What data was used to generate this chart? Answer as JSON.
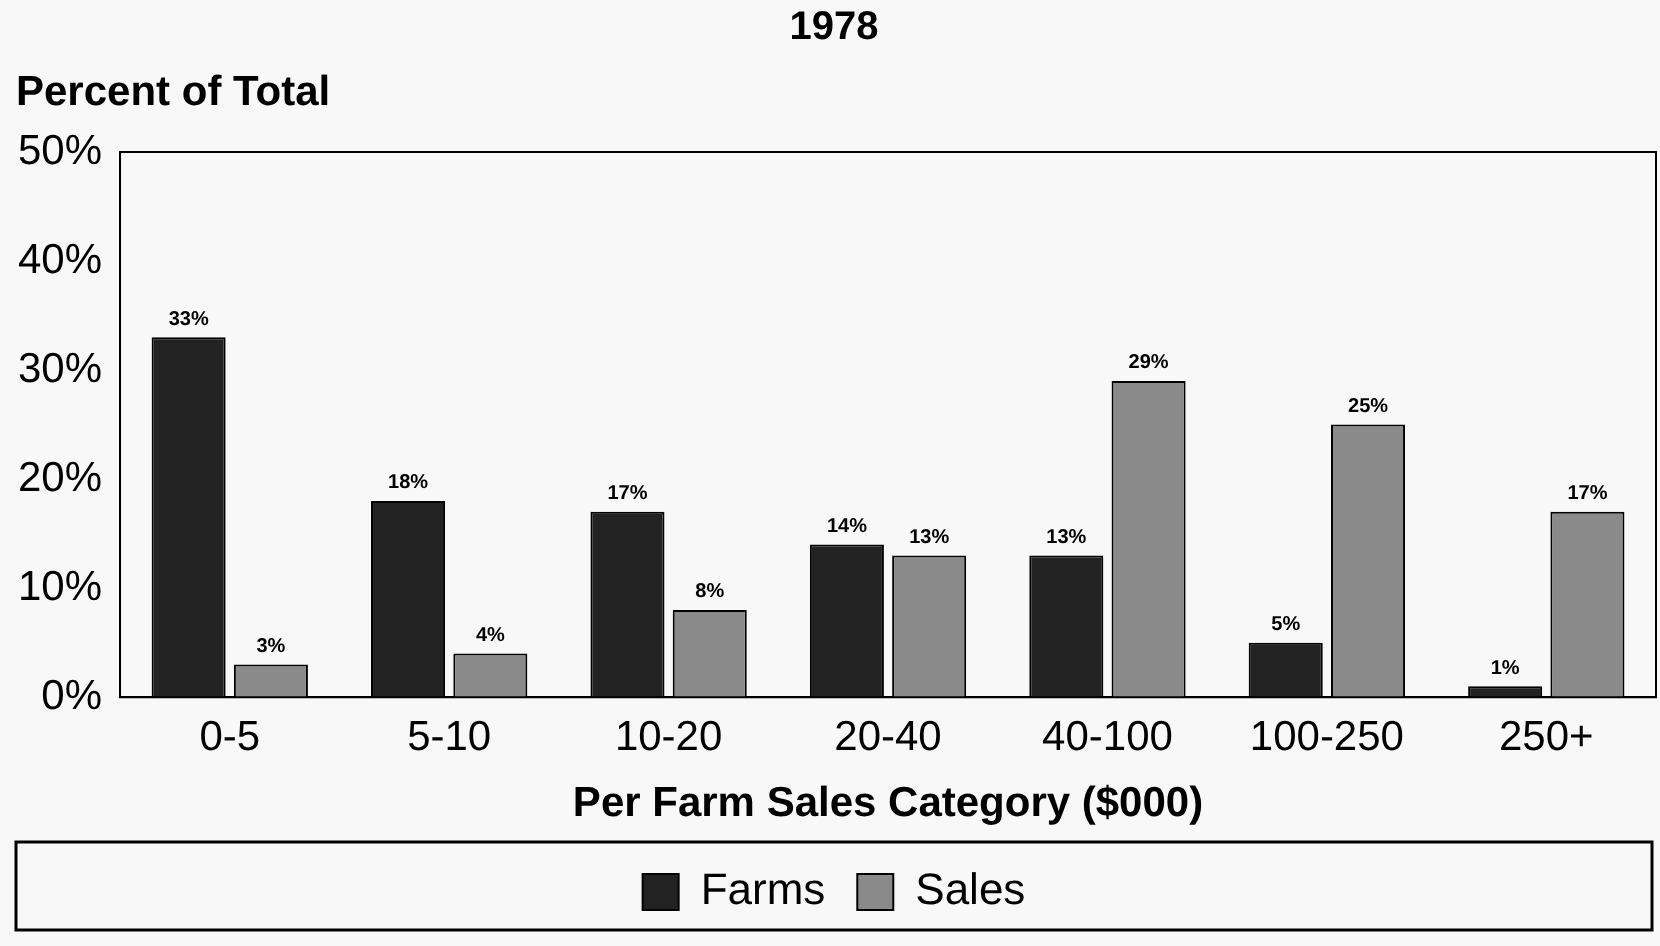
{
  "chart_data": {
    "type": "bar",
    "title": "1978",
    "ylabel": "Percent of Total",
    "xlabel": "Per Farm Sales Category ($000)",
    "categories": [
      "0-5",
      "5-10",
      "10-20",
      "20-40",
      "40-100",
      "100-250",
      "250+"
    ],
    "series": [
      {
        "name": "Farms",
        "color": "#222222",
        "values": [
          33,
          18,
          17,
          14,
          13,
          5,
          1
        ],
        "value_labels": [
          "33%",
          "18%",
          "17%",
          "14%",
          "13%",
          "5%",
          "1%"
        ]
      },
      {
        "name": "Sales",
        "color": "#8a8a8a",
        "values": [
          3,
          4,
          8,
          13,
          29,
          25,
          17
        ],
        "value_labels": [
          "3%",
          "4%",
          "8%",
          "13%",
          "29%",
          "25%",
          "17%"
        ]
      }
    ],
    "ylim": [
      0,
      50
    ],
    "yticks": [
      {
        "value": 0,
        "label": "0%"
      },
      {
        "value": 10,
        "label": "10%"
      },
      {
        "value": 20,
        "label": "20%"
      },
      {
        "value": 30,
        "label": "30%"
      },
      {
        "value": 40,
        "label": "40%"
      },
      {
        "value": 50,
        "label": "50%"
      }
    ],
    "grid": false,
    "legend": "bottom"
  }
}
